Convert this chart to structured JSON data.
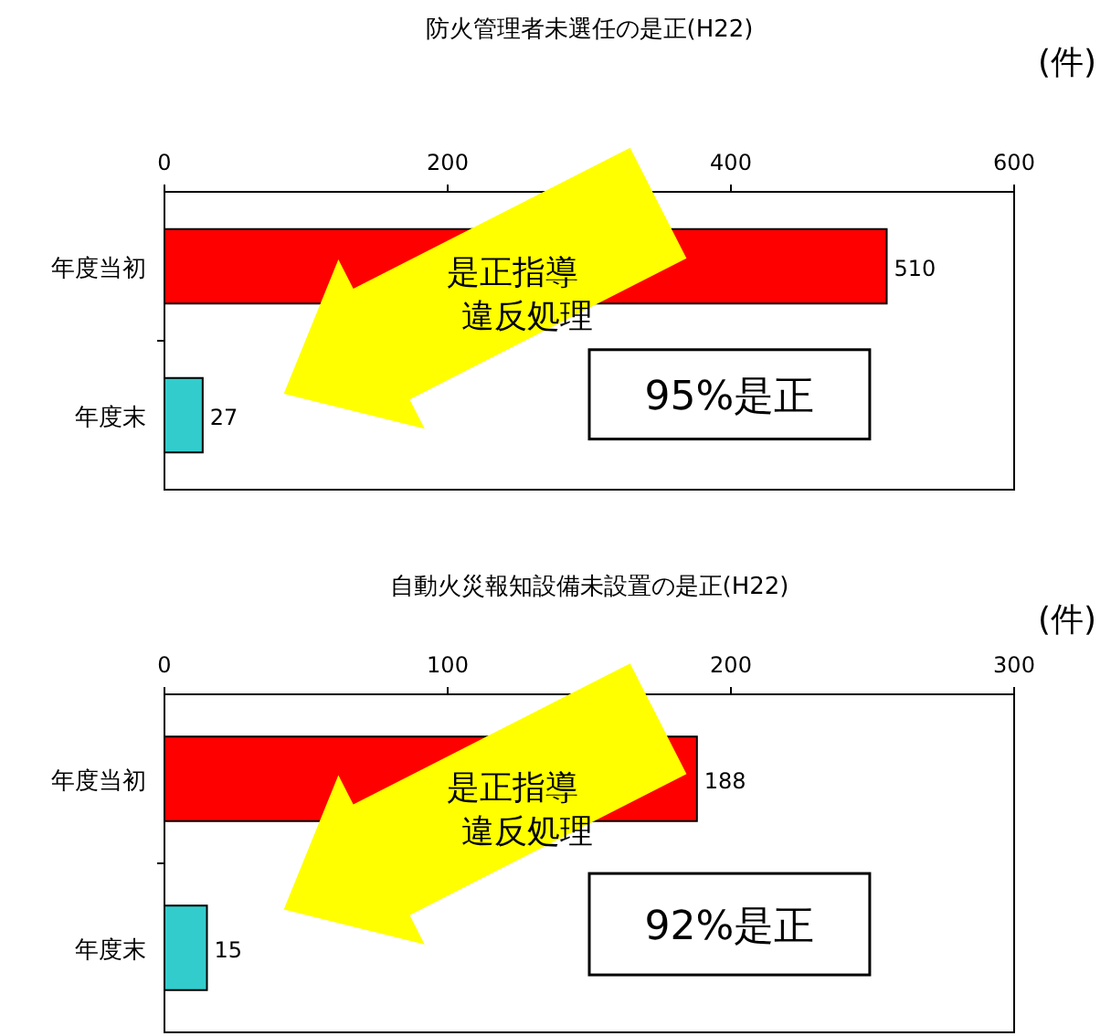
{
  "chart_data": [
    {
      "type": "bar",
      "orientation": "horizontal",
      "title": "防火管理者未選任の是正(H22)",
      "xlabel": "(件)",
      "categories": [
        "年度当初",
        "年度末"
      ],
      "values": [
        510,
        27
      ],
      "colors": [
        "#ff0000",
        "#33cccc"
      ],
      "xlim": [
        0,
        600
      ],
      "xticks": [
        0,
        200,
        400,
        600
      ],
      "data_labels": true,
      "annotations": [
        "是正指導",
        "違反処理",
        "95%是正"
      ]
    },
    {
      "type": "bar",
      "orientation": "horizontal",
      "title": "自動火災報知設備未設置の是正(H22)",
      "xlabel": "(件)",
      "categories": [
        "年度当初",
        "年度末"
      ],
      "values": [
        188,
        15
      ],
      "colors": [
        "#ff0000",
        "#33cccc"
      ],
      "xlim": [
        0,
        300
      ],
      "xticks": [
        0,
        100,
        200,
        300
      ],
      "data_labels": true,
      "annotations": [
        "是正指導",
        "違反処理",
        "92%是正"
      ]
    }
  ]
}
